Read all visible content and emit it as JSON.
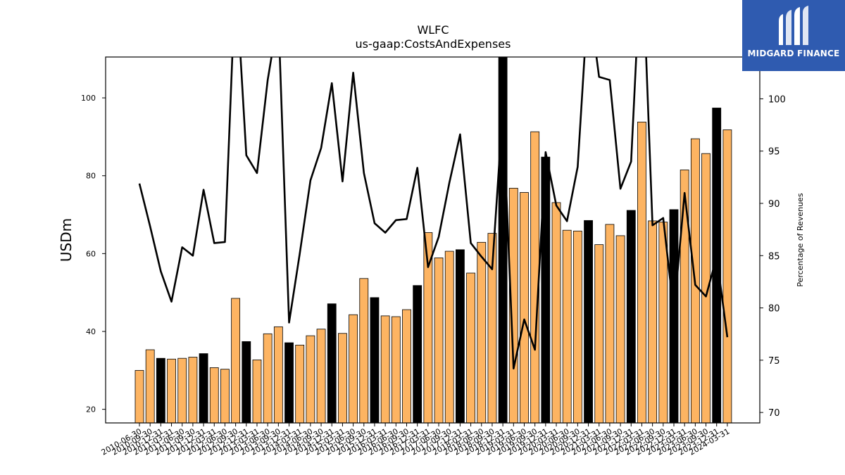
{
  "brand": {
    "name": "MIDGARD FINANCE",
    "bg_color": "#2f5bb0",
    "icon": "midgard-logo-icon"
  },
  "chart_data": {
    "type": "bar",
    "title": "WLFC",
    "subtitle": "us-gaap:CostsAndExpenses",
    "ylabel": "USDm",
    "ylabel_right": "Percentage of Revenues",
    "ylim": [
      16.5,
      110.5
    ],
    "ylim_right": [
      69,
      104
    ],
    "yticks": [
      20,
      40,
      60,
      80,
      100
    ],
    "yticks_right": [
      70,
      75,
      80,
      85,
      90,
      95,
      100
    ],
    "grid": false,
    "colors": {
      "bar": "#fdb462",
      "bar_annual": "#000000",
      "line": "#000000"
    },
    "categories": [
      "2010-06-30",
      "2010-09-30",
      "2010-12-31",
      "2011-03-31",
      "2011-06-30",
      "2011-09-30",
      "2011-12-31",
      "2012-03-31",
      "2012-06-30",
      "2012-09-30",
      "2012-12-31",
      "2013-03-31",
      "2013-06-30",
      "2013-09-30",
      "2013-12-31",
      "2014-03-31",
      "2014-06-30",
      "2014-09-30",
      "2014-12-31",
      "2015-03-31",
      "2015-06-30",
      "2015-09-30",
      "2015-12-31",
      "2016-03-31",
      "2016-06-30",
      "2016-09-30",
      "2016-12-31",
      "2017-03-31",
      "2017-06-30",
      "2017-09-30",
      "2017-12-31",
      "2018-03-31",
      "2018-06-30",
      "2018-09-30",
      "2018-12-31",
      "2019-03-31",
      "2019-06-30",
      "2019-09-30",
      "2019-12-31",
      "2020-03-31",
      "2020-06-30",
      "2020-09-30",
      "2020-12-31",
      "2021-03-31",
      "2021-06-30",
      "2021-09-30",
      "2021-12-31",
      "2022-03-31",
      "2022-06-30",
      "2022-09-30",
      "2022-12-31",
      "2023-03-31",
      "2023-06-30",
      "2023-09-30",
      "2023-12-31",
      "2024-03-31"
    ],
    "xticks_labeled": [
      "2010-06-30",
      "2010-09-30",
      "2010-12-31",
      "2011-03-31",
      "2011-06-30",
      "2011-09-30",
      "2011-12-31",
      "2012-03-31",
      "2012-06-30",
      "2012-09-30",
      "2012-12-31",
      "2013-03-31",
      "2013-06-30",
      "2013-09-30",
      "2013-12-31",
      "2014-03-31",
      "2014-06-30",
      "2014-09-30",
      "2014-12-31",
      "2015-03-31",
      "2015-06-30",
      "2015-09-30",
      "2015-12-31",
      "2016-03-31",
      "2016-06-30",
      "2016-09-30",
      "2016-12-31",
      "2017-03-31",
      "2017-06-30",
      "2017-09-30",
      "2017-12-31",
      "2018-03-31",
      "2018-06-30",
      "2018-09-30",
      "2018-12-31",
      "2019-03-31",
      "2019-06-30",
      "2019-09-30",
      "2019-12-31",
      "2020-03-31",
      "2020-06-30",
      "2020-09-30",
      "2020-12-31",
      "2021-03-31",
      "2021-06-30",
      "2021-09-30",
      "2021-12-31",
      "2022-03-31",
      "2022-06-30",
      "2022-09-30",
      "2022-12-31",
      "2023-03-31",
      "2023-06-30",
      "2023-09-30",
      "2023-12-31",
      "2024-03-31"
    ],
    "series": [
      {
        "type": "bar",
        "axis": "left",
        "values": [
          30.0,
          35.3,
          33.1,
          32.9,
          33.1,
          33.4,
          34.3,
          30.7,
          30.3,
          48.5,
          37.4,
          32.7,
          39.4,
          41.2,
          37.1,
          36.5,
          38.9,
          40.6,
          47.1,
          39.5,
          44.3,
          53.6,
          48.7,
          44.0,
          43.8,
          45.6,
          51.8,
          65.4,
          58.9,
          60.6,
          61.0,
          55.0,
          62.9,
          65.2,
          110.5,
          76.8,
          75.7,
          91.3,
          84.8,
          73.1,
          66.0,
          65.8,
          68.5,
          62.3,
          67.5,
          64.6,
          71.1,
          93.8,
          68.4,
          68.1,
          71.3,
          81.5,
          89.5,
          85.7,
          97.4,
          91.8
        ],
        "annual": [
          false,
          false,
          true,
          false,
          false,
          false,
          true,
          false,
          false,
          false,
          true,
          false,
          false,
          false,
          true,
          false,
          false,
          false,
          true,
          false,
          false,
          false,
          true,
          false,
          false,
          false,
          true,
          false,
          false,
          false,
          true,
          false,
          false,
          false,
          true,
          false,
          false,
          false,
          true,
          false,
          false,
          false,
          true,
          false,
          false,
          false,
          true,
          false,
          false,
          false,
          true,
          false,
          false,
          false,
          true,
          false
        ]
      },
      {
        "type": "line",
        "axis": "right",
        "values": [
          91.9,
          87.8,
          83.5,
          80.6,
          85.8,
          85.0,
          91.3,
          86.2,
          86.3,
          112.0,
          94.6,
          92.9,
          101.8,
          108.0,
          78.6,
          85.2,
          92.2,
          95.3,
          101.5,
          92.1,
          102.5,
          92.9,
          88.1,
          87.2,
          88.4,
          88.5,
          93.4,
          83.9,
          86.8,
          92.0,
          96.6,
          86.2,
          84.9,
          83.7,
          99.1,
          74.2,
          78.9,
          76.0,
          94.9,
          89.8,
          88.3,
          93.5,
          110.0,
          102.1,
          101.8,
          91.4,
          94.0,
          115.0,
          87.9,
          88.6,
          79.5,
          91.0,
          82.2,
          81.1,
          84.9,
          77.2
        ]
      }
    ]
  }
}
